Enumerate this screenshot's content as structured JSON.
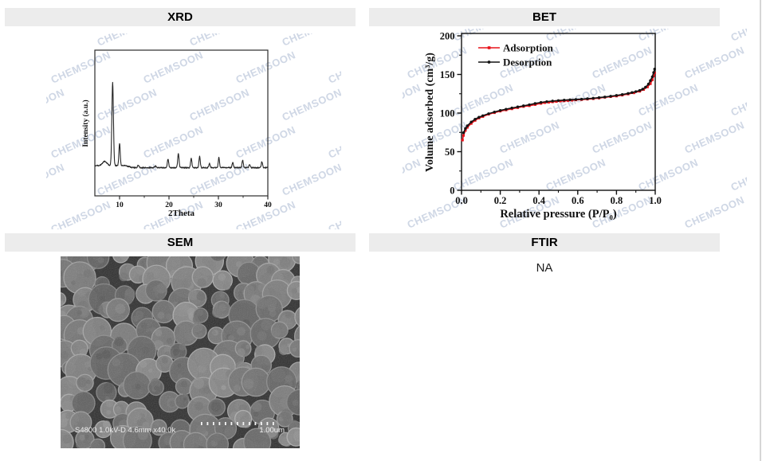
{
  "page": {
    "background": "#ffffff",
    "header_bg": "#ececec",
    "border_color": "#d6d6d6"
  },
  "watermark": {
    "text": "CHEMSOON",
    "color": "#cfd7e5"
  },
  "panels": {
    "xrd": {
      "title": "XRD"
    },
    "bet": {
      "title": "BET"
    },
    "sem": {
      "title": "SEM"
    },
    "ftir": {
      "title": "FTIR",
      "content": "NA"
    }
  },
  "sem_image": {
    "caption": "S4800 1.0kV-D 4.6mm x40.0k",
    "scale_label": "1.00um"
  },
  "chart_data": [
    {
      "id": "xrd",
      "type": "line",
      "title": "XRD pattern",
      "xlabel": "2Theta",
      "ylabel": "Intensity (a.u.)",
      "xlim": [
        5,
        40
      ],
      "xticks": [
        10,
        20,
        30,
        40
      ],
      "xticks_minor": [
        15,
        25,
        35
      ],
      "yticks": [],
      "grid": false,
      "line_color": "#262626",
      "peaks_note": "peaks as [two_theta_deg, relative_intensity, sigma_deg]",
      "peaks": [
        [
          7.0,
          0.05,
          0.45
        ],
        [
          8.6,
          1.0,
          0.16
        ],
        [
          10.0,
          0.27,
          0.13
        ],
        [
          13.8,
          0.03,
          0.15
        ],
        [
          17.3,
          0.02,
          0.15
        ],
        [
          19.8,
          0.1,
          0.14
        ],
        [
          21.9,
          0.17,
          0.14
        ],
        [
          24.5,
          0.11,
          0.13
        ],
        [
          26.2,
          0.14,
          0.13
        ],
        [
          28.2,
          0.05,
          0.13
        ],
        [
          30.1,
          0.12,
          0.13
        ],
        [
          32.9,
          0.06,
          0.13
        ],
        [
          34.9,
          0.09,
          0.13
        ],
        [
          36.3,
          0.04,
          0.12
        ],
        [
          38.8,
          0.07,
          0.13
        ]
      ]
    },
    {
      "id": "bet",
      "type": "scatter-line",
      "title": "N2 adsorption-desorption isotherm",
      "xlabel": "Relative pressure  (P/P₀)",
      "ylabel": "Volume adsorbed (cm³/g)",
      "xlim": [
        0,
        1.0
      ],
      "ylim": [
        0,
        200
      ],
      "xticks": [
        0.0,
        0.2,
        0.4,
        0.6,
        0.8,
        1.0
      ],
      "xticks_minor": [
        0.1,
        0.3,
        0.5,
        0.7,
        0.9
      ],
      "yticks": [
        0,
        50,
        100,
        150,
        200
      ],
      "yticks_minor": [
        25,
        75,
        125,
        175
      ],
      "grid": false,
      "legend_position": "top-left",
      "series": [
        {
          "name": "Adsorption",
          "color": "#e8121a",
          "marker": "square",
          "points": [
            [
              0.005,
              65
            ],
            [
              0.01,
              71
            ],
            [
              0.02,
              77.5
            ],
            [
              0.03,
              81.5
            ],
            [
              0.05,
              86.5
            ],
            [
              0.07,
              90.5
            ],
            [
              0.09,
              93.5
            ],
            [
              0.11,
              95.5
            ],
            [
              0.14,
              98.5
            ],
            [
              0.17,
              100.5
            ],
            [
              0.2,
              102.5
            ],
            [
              0.23,
              104
            ],
            [
              0.26,
              105.5
            ],
            [
              0.29,
              107
            ],
            [
              0.32,
              108.5
            ],
            [
              0.35,
              109.5
            ],
            [
              0.38,
              111
            ],
            [
              0.41,
              112.5
            ],
            [
              0.43,
              113.5
            ],
            [
              0.45,
              114
            ],
            [
              0.47,
              114.5
            ],
            [
              0.49,
              115
            ],
            [
              0.51,
              115.5
            ],
            [
              0.53,
              115.8
            ],
            [
              0.55,
              116.2
            ],
            [
              0.57,
              116.6
            ],
            [
              0.59,
              117
            ],
            [
              0.62,
              117.4
            ],
            [
              0.65,
              118
            ],
            [
              0.68,
              118.6
            ],
            [
              0.71,
              119.4
            ],
            [
              0.74,
              120.4
            ],
            [
              0.77,
              121.2
            ],
            [
              0.8,
              122
            ],
            [
              0.83,
              123.2
            ],
            [
              0.86,
              124.6
            ],
            [
              0.89,
              126.2
            ],
            [
              0.92,
              128.2
            ],
            [
              0.94,
              130.5
            ],
            [
              0.96,
              133.8
            ],
            [
              0.975,
              138
            ],
            [
              0.985,
              143
            ],
            [
              0.992,
              148
            ],
            [
              0.997,
              152
            ]
          ]
        },
        {
          "name": "Desorption",
          "color": "#141414",
          "marker": "circle",
          "points": [
            [
              0.997,
              157
            ],
            [
              0.992,
              152.5
            ],
            [
              0.985,
              147
            ],
            [
              0.975,
              142
            ],
            [
              0.965,
              137.5
            ],
            [
              0.95,
              133.5
            ],
            [
              0.935,
              131
            ],
            [
              0.92,
              129.3
            ],
            [
              0.9,
              127.8
            ],
            [
              0.88,
              126.6
            ],
            [
              0.86,
              125.4
            ],
            [
              0.83,
              124
            ],
            [
              0.8,
              122.8
            ],
            [
              0.77,
              121.8
            ],
            [
              0.74,
              120.8
            ],
            [
              0.71,
              120
            ],
            [
              0.68,
              119.2
            ],
            [
              0.65,
              118.6
            ],
            [
              0.62,
              118
            ],
            [
              0.59,
              117.6
            ],
            [
              0.56,
              117.2
            ],
            [
              0.53,
              116.8
            ],
            [
              0.5,
              116.2
            ],
            [
              0.47,
              115.6
            ],
            [
              0.44,
              114.8
            ],
            [
              0.41,
              113.8
            ],
            [
              0.38,
              112.4
            ],
            [
              0.35,
              110.8
            ],
            [
              0.32,
              109.4
            ],
            [
              0.29,
              108
            ],
            [
              0.26,
              106.6
            ],
            [
              0.23,
              105
            ],
            [
              0.2,
              103.4
            ],
            [
              0.17,
              101.4
            ],
            [
              0.14,
              99.2
            ],
            [
              0.11,
              96.6
            ],
            [
              0.09,
              94.6
            ],
            [
              0.07,
              92
            ],
            [
              0.05,
              88.5
            ],
            [
              0.03,
              83.5
            ],
            [
              0.02,
              80
            ],
            [
              0.01,
              74.5
            ]
          ]
        }
      ]
    }
  ]
}
